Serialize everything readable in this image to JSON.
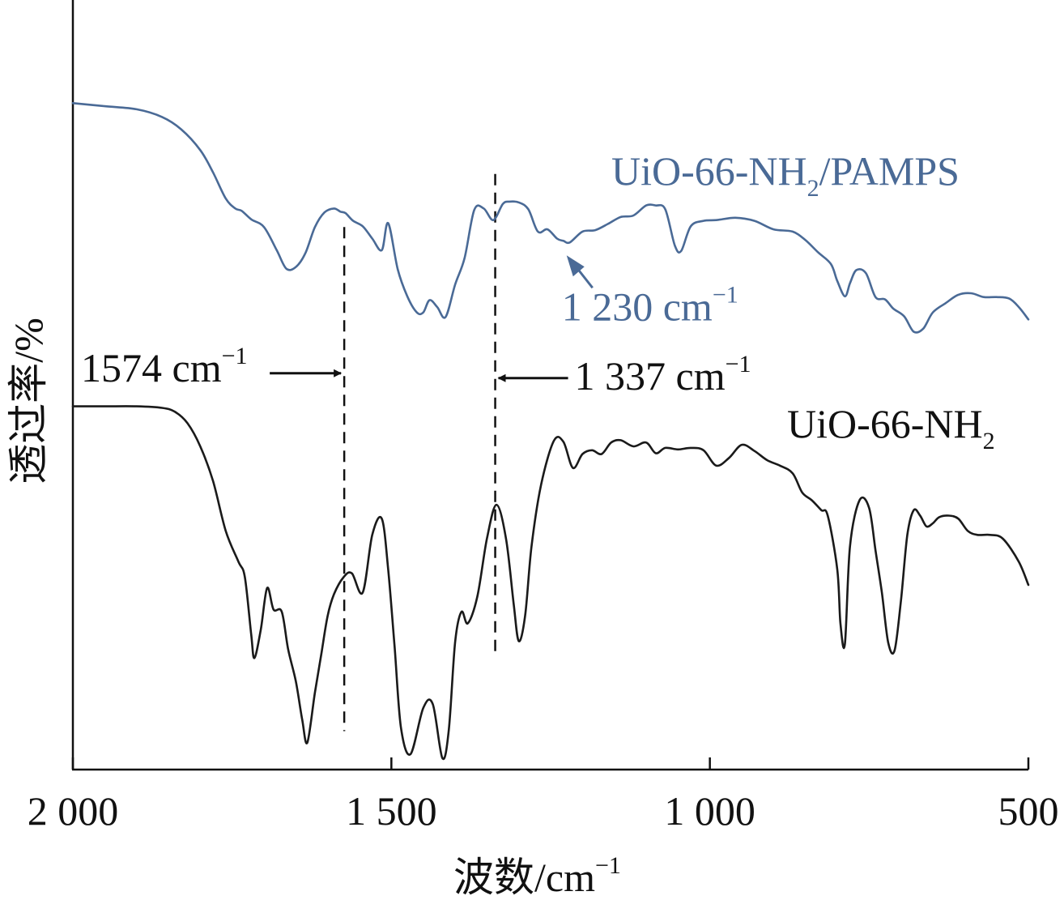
{
  "chart_data": {
    "type": "line",
    "xlabel": "波数/cm",
    "xlabel_sup": "−1",
    "ylabel": "透过率/%",
    "xlim": [
      2000,
      500
    ],
    "x_reversed": true,
    "y_units": "arbitrary transmittance (offset curves)",
    "ylim": [
      0,
      100
    ],
    "xticks": [
      2000,
      1500,
      1000,
      500
    ],
    "xtick_labels": [
      "2 000",
      "1 500",
      "1 000",
      "500"
    ],
    "grid": false,
    "series": [
      {
        "name_main": "UiO-66-NH",
        "name_sub": "2",
        "name_tail": "/PAMPS",
        "color": "#4a6a96",
        "points": [
          [
            2000,
            86.6
          ],
          [
            1950,
            86.2
          ],
          [
            1900,
            85.8
          ],
          [
            1860,
            84.8
          ],
          [
            1830,
            83.2
          ],
          [
            1800,
            80.5
          ],
          [
            1780,
            77.6
          ],
          [
            1760,
            74.2
          ],
          [
            1745,
            72.9
          ],
          [
            1735,
            72.6
          ],
          [
            1720,
            71.5
          ],
          [
            1700,
            70.5
          ],
          [
            1680,
            67.5
          ],
          [
            1665,
            65.1
          ],
          [
            1650,
            65.3
          ],
          [
            1635,
            67.1
          ],
          [
            1620,
            70.5
          ],
          [
            1605,
            72.4
          ],
          [
            1590,
            72.9
          ],
          [
            1580,
            72.5
          ],
          [
            1572,
            72.3
          ],
          [
            1560,
            71.3
          ],
          [
            1545,
            70.6
          ],
          [
            1530,
            69.0
          ],
          [
            1515,
            67.5
          ],
          [
            1505,
            71.0
          ],
          [
            1490,
            65.0
          ],
          [
            1475,
            61.5
          ],
          [
            1460,
            59.4
          ],
          [
            1450,
            59.4
          ],
          [
            1440,
            61.0
          ],
          [
            1428,
            60.1
          ],
          [
            1415,
            58.8
          ],
          [
            1400,
            63.0
          ],
          [
            1385,
            66.5
          ],
          [
            1370,
            72.7
          ],
          [
            1355,
            72.9
          ],
          [
            1340,
            71.4
          ],
          [
            1325,
            73.5
          ],
          [
            1315,
            73.8
          ],
          [
            1300,
            73.7
          ],
          [
            1285,
            72.8
          ],
          [
            1270,
            69.9
          ],
          [
            1255,
            70.2
          ],
          [
            1240,
            69.0
          ],
          [
            1230,
            68.7
          ],
          [
            1220,
            68.5
          ],
          [
            1200,
            69.9
          ],
          [
            1180,
            70.1
          ],
          [
            1160,
            70.9
          ],
          [
            1140,
            71.8
          ],
          [
            1120,
            72.0
          ],
          [
            1100,
            73.3
          ],
          [
            1085,
            73.3
          ],
          [
            1070,
            72.8
          ],
          [
            1055,
            68.1
          ],
          [
            1045,
            67.4
          ],
          [
            1030,
            70.6
          ],
          [
            1010,
            71.3
          ],
          [
            990,
            71.4
          ],
          [
            960,
            71.7
          ],
          [
            930,
            71.3
          ],
          [
            900,
            70.2
          ],
          [
            870,
            69.9
          ],
          [
            850,
            68.8
          ],
          [
            830,
            67.2
          ],
          [
            810,
            65.7
          ],
          [
            800,
            63.5
          ],
          [
            788,
            61.5
          ],
          [
            780,
            63.2
          ],
          [
            770,
            64.9
          ],
          [
            755,
            64.5
          ],
          [
            740,
            61.4
          ],
          [
            725,
            61.1
          ],
          [
            712,
            59.9
          ],
          [
            695,
            58.9
          ],
          [
            680,
            56.9
          ],
          [
            665,
            57.3
          ],
          [
            650,
            59.4
          ],
          [
            630,
            60.6
          ],
          [
            610,
            61.7
          ],
          [
            590,
            61.9
          ],
          [
            570,
            61.4
          ],
          [
            550,
            61.4
          ],
          [
            530,
            61.2
          ],
          [
            515,
            60.1
          ],
          [
            500,
            58.5
          ]
        ]
      },
      {
        "name_main": "UiO-66-NH",
        "name_sub": "2",
        "name_tail": "",
        "color": "#1a1a1a",
        "points": [
          [
            2000,
            47.2
          ],
          [
            1950,
            47.2
          ],
          [
            1900,
            47.2
          ],
          [
            1860,
            47.0
          ],
          [
            1840,
            46.5
          ],
          [
            1820,
            45.0
          ],
          [
            1800,
            42.0
          ],
          [
            1780,
            37.5
          ],
          [
            1760,
            31.0
          ],
          [
            1740,
            27.0
          ],
          [
            1730,
            25.0
          ],
          [
            1720,
            17.5
          ],
          [
            1715,
            14.5
          ],
          [
            1705,
            18.2
          ],
          [
            1695,
            23.6
          ],
          [
            1685,
            20.8
          ],
          [
            1672,
            20.5
          ],
          [
            1662,
            15.6
          ],
          [
            1650,
            11.5
          ],
          [
            1640,
            6.5
          ],
          [
            1632,
            3.5
          ],
          [
            1620,
            10.0
          ],
          [
            1610,
            15.0
          ],
          [
            1600,
            20.0
          ],
          [
            1590,
            22.8
          ],
          [
            1575,
            25.0
          ],
          [
            1562,
            25.5
          ],
          [
            1545,
            23.0
          ],
          [
            1530,
            30.5
          ],
          [
            1515,
            32.6
          ],
          [
            1505,
            26.0
          ],
          [
            1495,
            16.0
          ],
          [
            1485,
            5.5
          ],
          [
            1470,
            2.0
          ],
          [
            1450,
            8.0
          ],
          [
            1435,
            8.5
          ],
          [
            1420,
            1.5
          ],
          [
            1410,
            5.0
          ],
          [
            1400,
            16.5
          ],
          [
            1390,
            20.5
          ],
          [
            1380,
            19.0
          ],
          [
            1365,
            22.5
          ],
          [
            1350,
            30.0
          ],
          [
            1335,
            34.4
          ],
          [
            1320,
            30.0
          ],
          [
            1308,
            21.5
          ],
          [
            1300,
            16.7
          ],
          [
            1290,
            20.0
          ],
          [
            1280,
            29.0
          ],
          [
            1265,
            37.0
          ],
          [
            1245,
            42.7
          ],
          [
            1230,
            42.6
          ],
          [
            1215,
            39.2
          ],
          [
            1200,
            41.0
          ],
          [
            1185,
            41.5
          ],
          [
            1170,
            41.0
          ],
          [
            1155,
            42.5
          ],
          [
            1140,
            42.8
          ],
          [
            1120,
            42.0
          ],
          [
            1100,
            42.5
          ],
          [
            1085,
            41.1
          ],
          [
            1070,
            41.8
          ],
          [
            1050,
            41.6
          ],
          [
            1030,
            41.8
          ],
          [
            1010,
            41.5
          ],
          [
            990,
            39.5
          ],
          [
            970,
            40.5
          ],
          [
            950,
            42.2
          ],
          [
            930,
            41.4
          ],
          [
            910,
            40.2
          ],
          [
            890,
            39.5
          ],
          [
            870,
            38.5
          ],
          [
            855,
            36.0
          ],
          [
            840,
            35.0
          ],
          [
            825,
            33.7
          ],
          [
            815,
            33.0
          ],
          [
            800,
            26.0
          ],
          [
            795,
            19.0
          ],
          [
            788,
            16.3
          ],
          [
            780,
            29.0
          ],
          [
            765,
            35.0
          ],
          [
            750,
            34.0
          ],
          [
            740,
            28.5
          ],
          [
            730,
            23.0
          ],
          [
            720,
            16.5
          ],
          [
            710,
            15.5
          ],
          [
            700,
            22.0
          ],
          [
            690,
            30.5
          ],
          [
            680,
            33.7
          ],
          [
            670,
            33.0
          ],
          [
            660,
            31.6
          ],
          [
            650,
            32.0
          ],
          [
            640,
            32.8
          ],
          [
            625,
            33.0
          ],
          [
            610,
            32.6
          ],
          [
            595,
            31.0
          ],
          [
            580,
            30.5
          ],
          [
            560,
            30.5
          ],
          [
            540,
            30.0
          ],
          [
            515,
            27.0
          ],
          [
            500,
            24.0
          ]
        ]
      }
    ],
    "reference_lines": [
      {
        "x": 1574,
        "y_from": 5.0,
        "y_to": 70.5
      },
      {
        "x": 1337,
        "y_from": 15.2,
        "y_to": 77.4
      }
    ],
    "annotations": [
      {
        "text": "1574 cm",
        "sup": "−1",
        "arrow_to_x": 1574,
        "side": "left",
        "y": 51.5
      },
      {
        "text": "1 337 cm",
        "sup": "−1",
        "arrow_to_x": 1337,
        "side": "right",
        "y": 51.5
      },
      {
        "text": "1 230 cm",
        "sup": "−1",
        "arrow_to_x": 1230,
        "side": "below",
        "y": 68.5,
        "color": "#4a6a96"
      }
    ]
  }
}
